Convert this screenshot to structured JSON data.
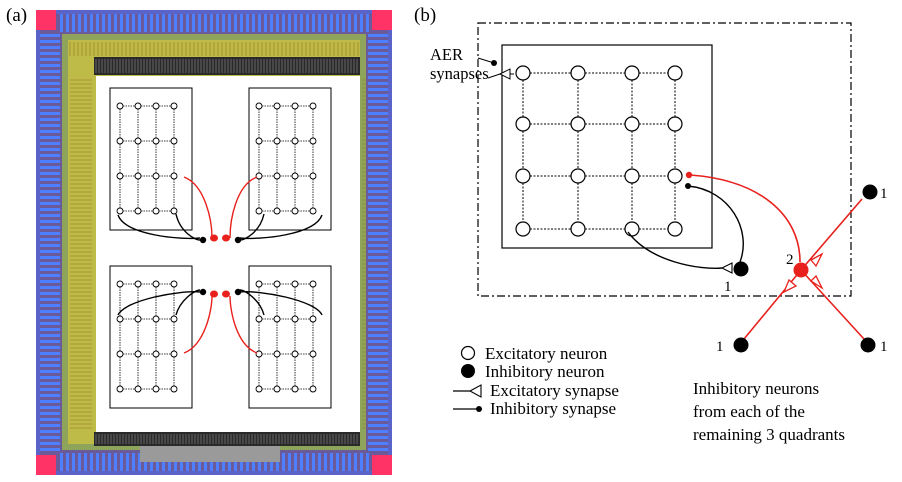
{
  "panel_a": {
    "label": "(a)",
    "colors": {
      "die_bg": "#6b5a9a",
      "pad_ring": "#3a3aff",
      "corner": "#ff3366",
      "routing_green": "#7fb05a",
      "routing_yellow": "#d8c23a",
      "core": "#ffffff",
      "red_wire": "#e8211c"
    }
  },
  "panel_b": {
    "label": "(b)",
    "aer_label": "AER\nsynapses",
    "local_inhibitory_label": "1",
    "central_inhibitory_label": "2",
    "remote_labels": [
      "1",
      "1",
      "1"
    ],
    "remote_caption": "Inhibitory neurons\nfrom each of the\nremaining 3 quadrants"
  },
  "legend": {
    "items": [
      {
        "symbol": "open-circle-icon",
        "text": "Excitatory neuron"
      },
      {
        "symbol": "filled-circle-icon",
        "text": "Inhibitory neuron"
      },
      {
        "symbol": "excitatory-synapse-icon",
        "text": "Excitatory synapse"
      },
      {
        "symbol": "inhibitory-synapse-icon",
        "text": "Inhibitory synapse"
      }
    ]
  },
  "colors": {
    "connection_red": "#e8211c",
    "ink": "#000000"
  }
}
